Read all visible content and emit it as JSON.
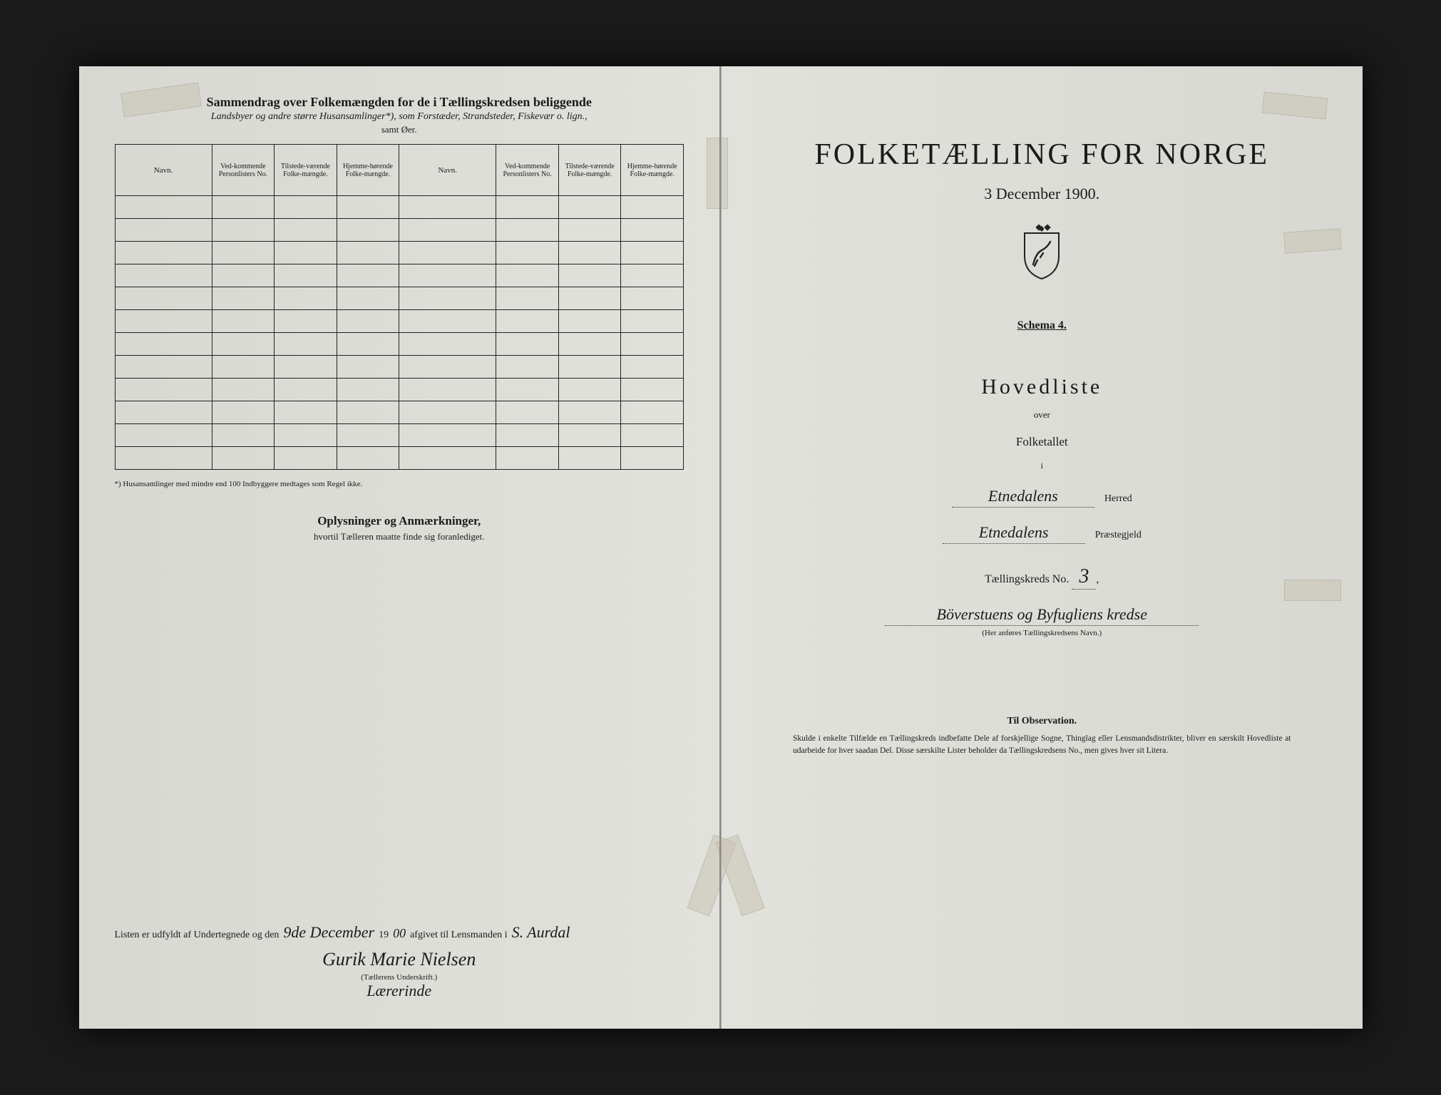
{
  "left": {
    "title_main": "Sammendrag over Folkemængden for de i Tællingskredsen beliggende",
    "title_sub": "Landsbyer og andre større Husansamlinger*), som Forstæder, Strandsteder, Fiskevær o. lign.,",
    "title_sub2": "samt Øer.",
    "cols": [
      "Navn.",
      "Ved-kommende Personlisters No.",
      "Tilstede-værende Folke-mængde.",
      "Hjemme-hørende Folke-mængde.",
      "Navn.",
      "Ved-kommende Personlisters No.",
      "Tilstede-værende Folke-mængde.",
      "Hjemme-hørende Folke-mængde."
    ],
    "row_count": 12,
    "footnote": "*) Husansamlinger med mindre end 100 Indbyggere medtages som Regel ikke.",
    "oplys_title": "Oplysninger og Anmærkninger,",
    "oplys_sub": "hvortil Tælleren maatte finde sig foranlediget.",
    "sig_pre": "Listen er udfyldt af Undertegnede og den",
    "sig_date": "9de December",
    "sig_year_pre": "19",
    "sig_year": "00",
    "sig_mid": "afgivet til Lensmanden i",
    "sig_place": "S. Aurdal",
    "sig_name": "Gurik Marie Nielsen",
    "sig_under": "(Tællerens Underskrift.)",
    "sig_role": "Lærerinde"
  },
  "right": {
    "main_title": "FOLKETÆLLING FOR NORGE",
    "date": "3 December 1900.",
    "schema": "Schema 4.",
    "hovedliste": "Hovedliste",
    "over": "over",
    "folketallet": "Folketallet",
    "i": "i",
    "herred_val": "Etnedalens",
    "herred_lbl": "Herred",
    "praeste_val": "Etnedalens",
    "praeste_lbl": "Præstegjeld",
    "kreds_pre": "Tællingskreds No.",
    "kreds_no": "3",
    "kreds_name": "Böverstuens og Byfugliens kredse",
    "kreds_caption": "(Her anføres Tællingskredsens Navn.)",
    "obs_title": "Til Observation.",
    "obs_body": "Skulde i enkelte Tilfælde en Tællingskreds indbefatte Dele af forskjellige Sogne, Thinglag eller Lensmandsdistrikter, bliver en særskilt Hovedliste at udarbeide for hver saadan Del. Disse særskilte Lister beholder da Tællingskredsens No., men gives hver sit Litera."
  },
  "colors": {
    "paper": "#dedcd4",
    "ink": "#1a1a1a",
    "bg": "#151515"
  }
}
